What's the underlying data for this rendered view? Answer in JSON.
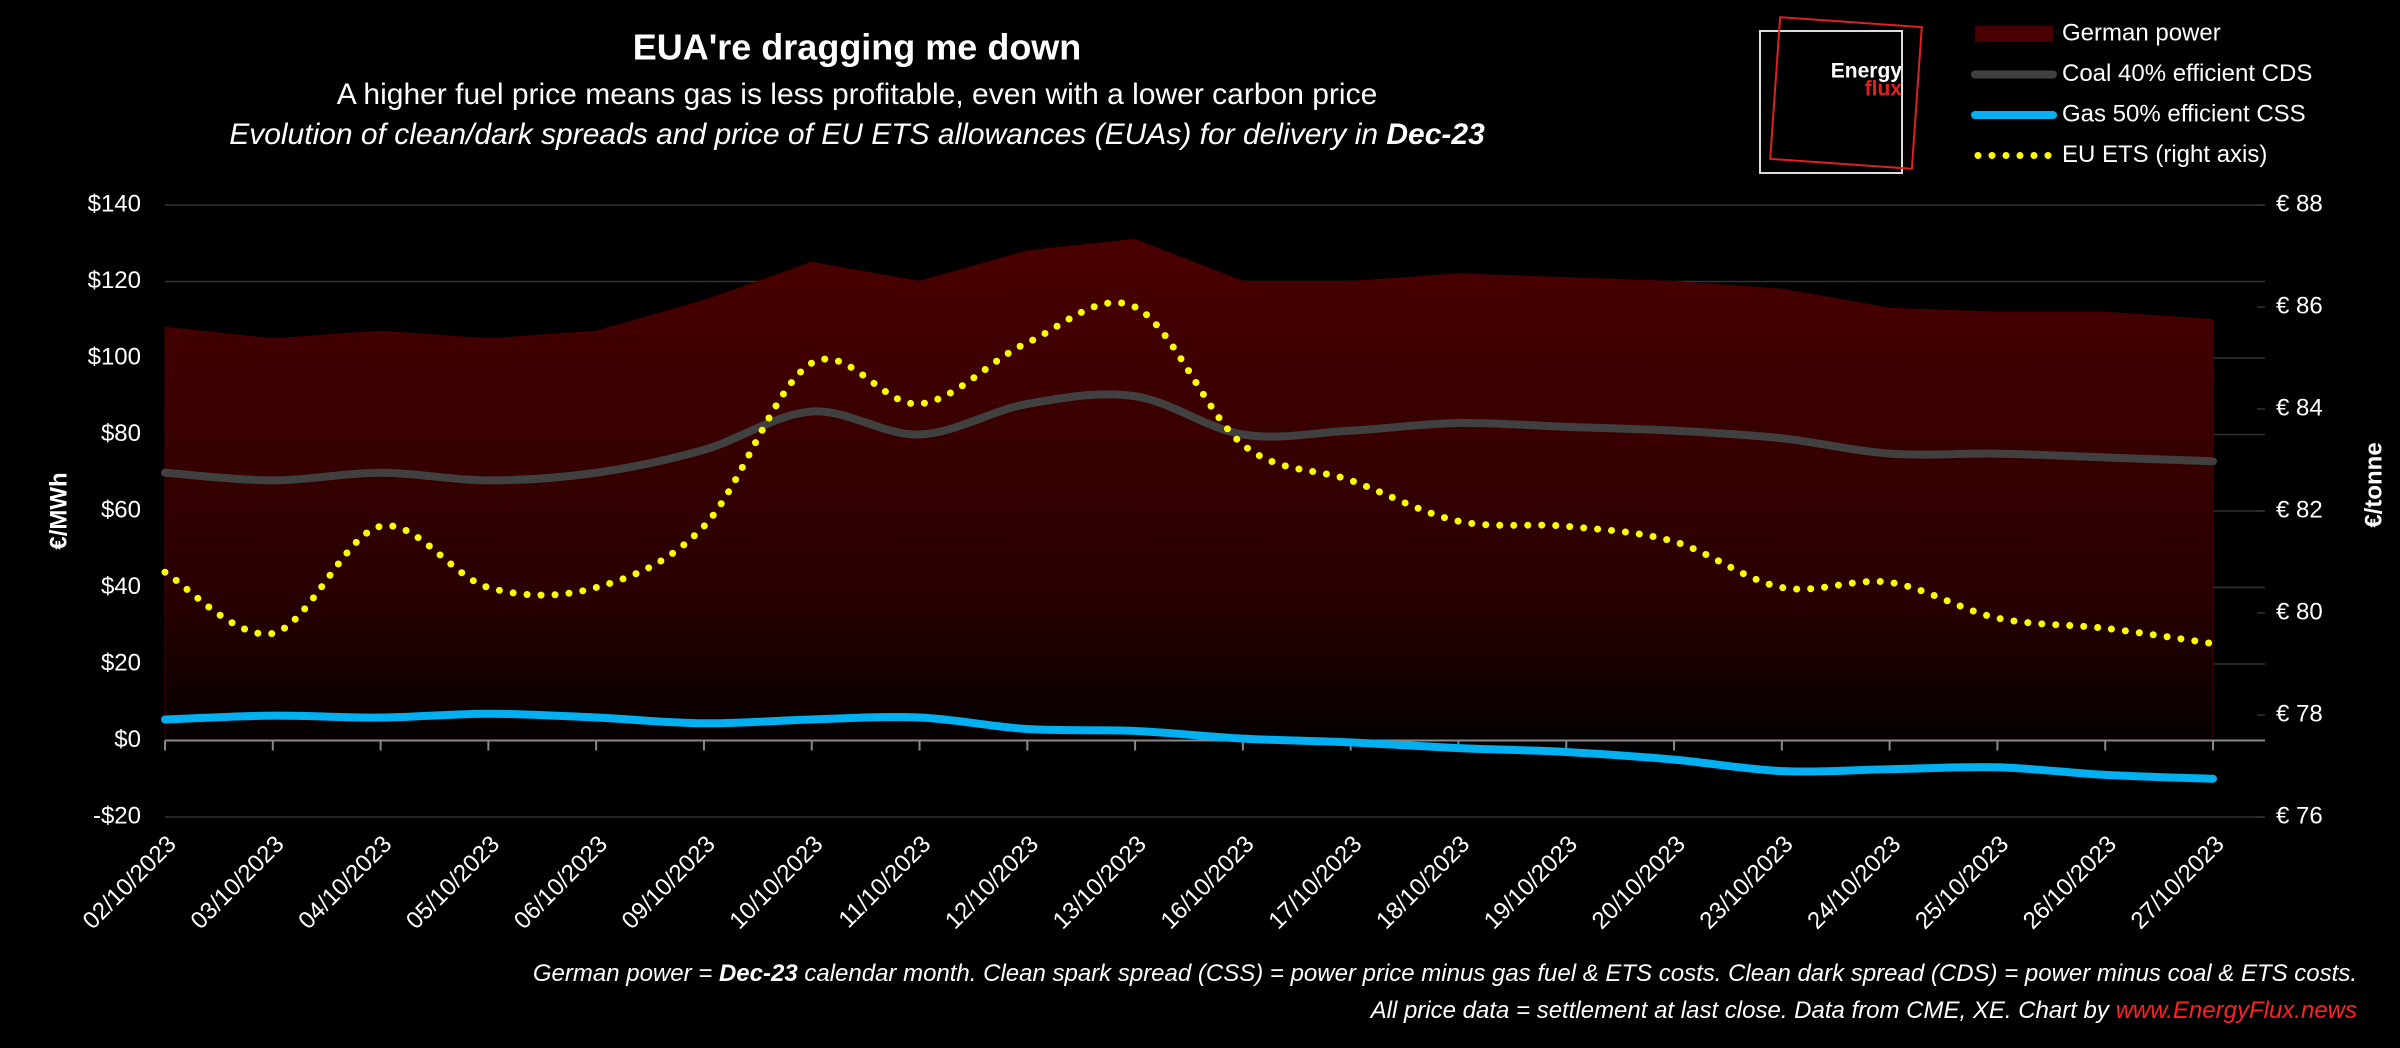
{
  "chart_data": {
    "type": "line",
    "title": "EUA're dragging me down",
    "subtitle": "A higher fuel price means gas is less profitable, even with a lower carbon price",
    "subtitle2": [
      "Evolution of clean/dark spreads and price of EU ETS allowances (EUAs) for delivery in ",
      "Dec-23"
    ],
    "y_label": "€/MWh",
    "y2_label": "€/tonne",
    "categories": [
      "02/10/2023",
      "03/10/2023",
      "04/10/2023",
      "05/10/2023",
      "06/10/2023",
      "09/10/2023",
      "10/10/2023",
      "11/10/2023",
      "12/10/2023",
      "13/10/2023",
      "16/10/2023",
      "17/10/2023",
      "18/10/2023",
      "19/10/2023",
      "20/10/2023",
      "23/10/2023",
      "24/10/2023",
      "25/10/2023",
      "26/10/2023",
      "27/10/2023"
    ],
    "series": [
      {
        "name": "German power",
        "color": "#4a0000",
        "style": "area",
        "values": [
          108,
          105,
          107,
          105,
          107,
          115,
          125,
          120,
          128,
          131,
          120,
          120,
          122,
          121,
          120,
          118,
          113,
          112,
          112,
          110
        ]
      },
      {
        "name": "Coal 40% efficient CDS",
        "color": "#404040",
        "style": "line",
        "values": [
          70,
          68,
          70,
          68,
          70,
          76,
          86,
          80,
          88,
          90,
          80,
          81,
          83,
          82,
          81,
          79,
          75,
          75,
          74,
          73
        ]
      },
      {
        "name": "Gas 50% efficient CSS",
        "color": "#00b0f0",
        "style": "line",
        "values": [
          5.5,
          6.5,
          6,
          7,
          6,
          4.5,
          5.5,
          6,
          3,
          2.5,
          0.5,
          -0.5,
          -2,
          -3,
          -5,
          -8,
          -7.5,
          -7,
          -9,
          -10
        ]
      },
      {
        "name": "EU ETS (right axis)",
        "color": "#ffff00",
        "style": "dotted",
        "axis": "y2",
        "values": [
          80.8,
          79.6,
          81.7,
          80.5,
          80.5,
          81.7,
          84.9,
          84.1,
          85.3,
          86.0,
          83.3,
          82.6,
          81.8,
          81.7,
          81.4,
          80.5,
          80.6,
          79.9,
          79.7,
          79.4
        ]
      }
    ],
    "ylim": [
      -20,
      140
    ],
    "yticks": [
      {
        "value": -20,
        "label": "-$20"
      },
      {
        "value": 0,
        "label": "$0"
      },
      {
        "value": 20,
        "label": "$20"
      },
      {
        "value": 40,
        "label": "$40"
      },
      {
        "value": 60,
        "label": "$60"
      },
      {
        "value": 80,
        "label": "$80"
      },
      {
        "value": 100,
        "label": "$100"
      },
      {
        "value": 120,
        "label": "$120"
      },
      {
        "value": 140,
        "label": "$140"
      }
    ],
    "y2lim": [
      76,
      88
    ],
    "y2ticks": [
      {
        "value": 76,
        "label": "€ 76"
      },
      {
        "value": 78,
        "label": "€ 78"
      },
      {
        "value": 80,
        "label": "€ 80"
      },
      {
        "value": 82,
        "label": "€ 82"
      },
      {
        "value": 84,
        "label": "€ 84"
      },
      {
        "value": 86,
        "label": "€ 86"
      },
      {
        "value": 88,
        "label": "€ 88"
      }
    ],
    "grid": true,
    "legend": "top-right"
  },
  "logo": [
    "Energy",
    "flux"
  ],
  "footnote": {
    "line1": [
      "German power = ",
      "Dec-23",
      " calendar month. Clean spark spread (CSS) = power price minus gas fuel & ETS costs. Clean dark spread (CDS) = power minus coal & ETS costs."
    ],
    "line2": [
      "All price data = settlement at last close. Data from CME, XE. Chart by ",
      "www.EnergyFlux.news"
    ]
  }
}
